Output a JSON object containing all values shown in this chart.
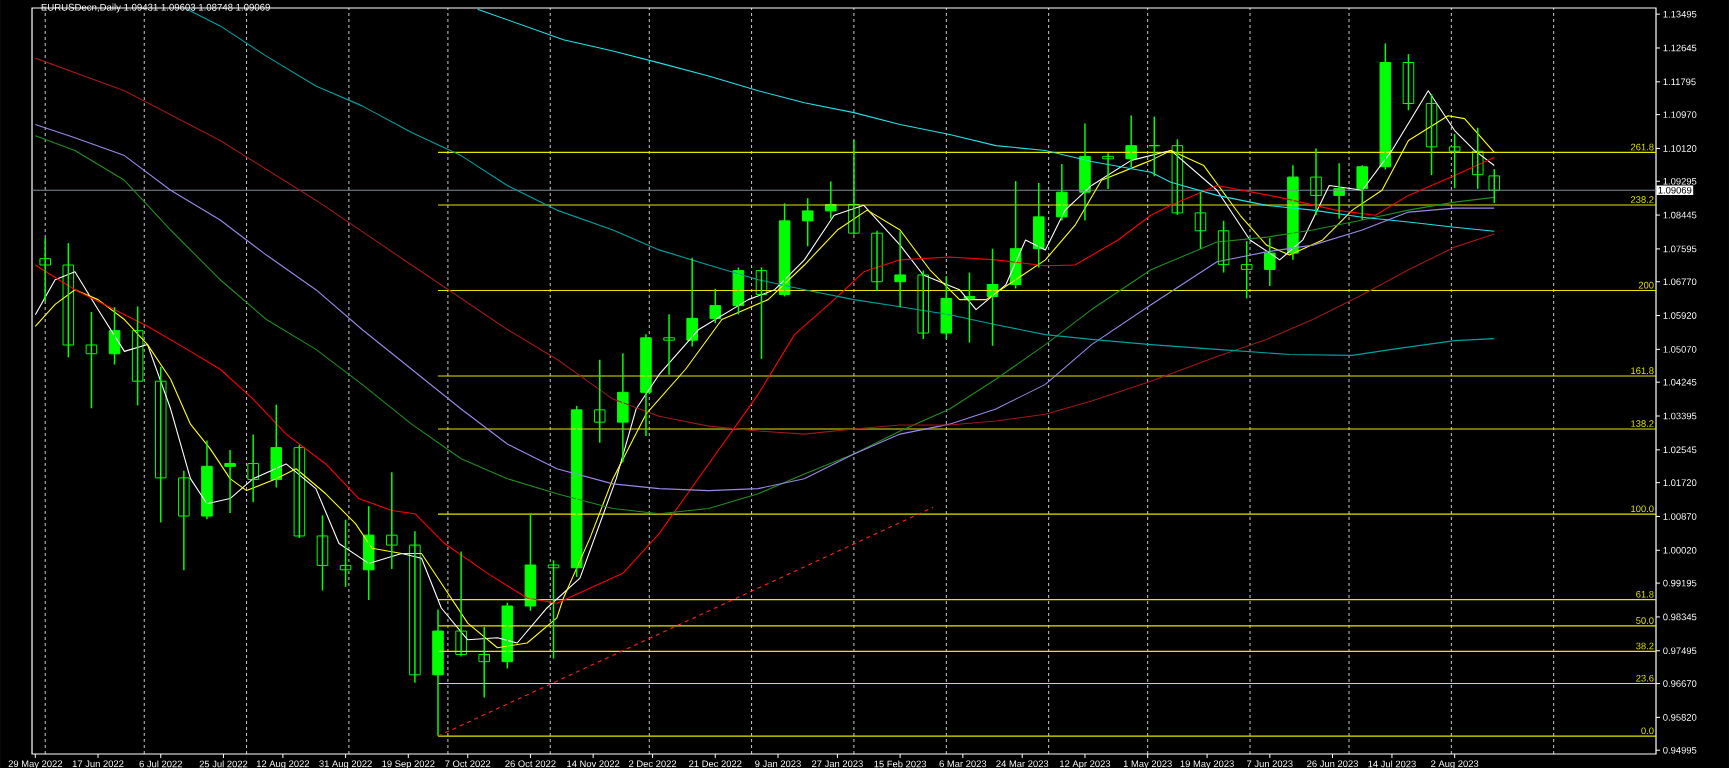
{
  "chart_data": {
    "type": "candlestick",
    "title": "EURUSDecn,Daily  1.09431 1.09603 1.08748 1.09069",
    "color": "#00ff00",
    "x": [
      "2022-06-01",
      "2022-06-08",
      "2022-06-15",
      "2022-06-22",
      "2022-06-29",
      "2022-07-06",
      "2022-07-13",
      "2022-07-20",
      "2022-07-27",
      "2022-08-03",
      "2022-08-10",
      "2022-08-17",
      "2022-08-24",
      "2022-08-31",
      "2022-09-07",
      "2022-09-14",
      "2022-09-21",
      "2022-09-28",
      "2022-10-05",
      "2022-10-12",
      "2022-10-19",
      "2022-10-26",
      "2022-11-02",
      "2022-11-09",
      "2022-11-16",
      "2022-11-23",
      "2022-11-30",
      "2022-12-07",
      "2022-12-14",
      "2022-12-21",
      "2022-12-28",
      "2023-01-04",
      "2023-01-11",
      "2023-01-18",
      "2023-01-25",
      "2023-02-01",
      "2023-02-08",
      "2023-02-15",
      "2023-02-22",
      "2023-03-01",
      "2023-03-08",
      "2023-03-15",
      "2023-03-22",
      "2023-03-29",
      "2023-04-05",
      "2023-04-12",
      "2023-04-19",
      "2023-04-26",
      "2023-05-03",
      "2023-05-10",
      "2023-05-17",
      "2023-05-24",
      "2023-05-31",
      "2023-06-07",
      "2023-06-14",
      "2023-06-21",
      "2023-06-28",
      "2023-07-05",
      "2023-07-12",
      "2023-07-19",
      "2023-07-26",
      "2023-08-02",
      "2023-08-09",
      "2023-08-14"
    ],
    "ohlc": [
      [
        1.0735,
        1.0787,
        1.0627,
        1.0719
      ],
      [
        1.0719,
        1.0774,
        1.0487,
        1.0518
      ],
      [
        1.0518,
        1.0601,
        1.0359,
        1.0496
      ],
      [
        1.0496,
        1.0613,
        1.0469,
        1.0554
      ],
      [
        1.0554,
        1.0615,
        1.0366,
        1.0427
      ],
      [
        1.0427,
        1.0463,
        1.0072,
        1.0184
      ],
      [
        1.0184,
        1.0202,
        0.9952,
        1.0088
      ],
      [
        1.0088,
        1.0278,
        1.008,
        1.0213
      ],
      [
        1.0213,
        1.0254,
        1.0096,
        1.022
      ],
      [
        1.022,
        1.0293,
        1.0123,
        1.018
      ],
      [
        1.018,
        1.0368,
        1.016,
        1.026
      ],
      [
        1.026,
        1.0267,
        1.0033,
        1.0038
      ],
      [
        1.0038,
        1.009,
        0.9901,
        0.9964
      ],
      [
        0.9964,
        1.0079,
        0.991,
        0.9953
      ],
      [
        0.9953,
        1.0113,
        0.9877,
        1.004
      ],
      [
        1.004,
        1.0198,
        0.9955,
        1.0015
      ],
      [
        1.0015,
        1.005,
        0.9669,
        0.9689
      ],
      [
        0.9689,
        0.9853,
        0.9536,
        0.9799
      ],
      [
        0.9799,
        0.9999,
        0.9735,
        0.974
      ],
      [
        0.974,
        0.9809,
        0.9632,
        0.9722
      ],
      [
        0.9722,
        0.987,
        0.9705,
        0.9862
      ],
      [
        0.9862,
        1.0094,
        0.985,
        0.9965
      ],
      [
        0.9965,
        0.9977,
        0.973,
        0.9958
      ],
      [
        0.9958,
        1.0365,
        0.9935,
        1.0355
      ],
      [
        1.0355,
        1.0481,
        1.0272,
        1.0324
      ],
      [
        1.0324,
        1.0497,
        1.0223,
        1.0399
      ],
      [
        1.0399,
        1.0545,
        1.0289,
        1.0536
      ],
      [
        1.0536,
        1.0595,
        1.0443,
        1.053
      ],
      [
        1.053,
        1.0737,
        1.0514,
        1.0585
      ],
      [
        1.0585,
        1.0659,
        1.0573,
        1.0617
      ],
      [
        1.0617,
        1.0713,
        1.0595,
        1.0705
      ],
      [
        1.0705,
        1.0713,
        1.0483,
        1.0645
      ],
      [
        1.0645,
        1.0874,
        1.064,
        1.083
      ],
      [
        1.083,
        1.0887,
        1.0766,
        1.0855
      ],
      [
        1.0855,
        1.0929,
        1.0835,
        1.0871
      ],
      [
        1.0871,
        1.1033,
        1.0796,
        1.0799
      ],
      [
        1.0799,
        1.0805,
        1.0655,
        1.0677
      ],
      [
        1.0677,
        1.0804,
        1.0613,
        1.0694
      ],
      [
        1.0694,
        1.0705,
        1.0533,
        1.0548
      ],
      [
        1.0548,
        1.0691,
        1.0533,
        1.0635
      ],
      [
        1.0635,
        1.07,
        1.0524,
        1.064
      ],
      [
        1.064,
        1.076,
        1.0516,
        1.067
      ],
      [
        1.067,
        1.093,
        1.066,
        1.076
      ],
      [
        1.076,
        1.0925,
        1.0713,
        1.084
      ],
      [
        1.084,
        1.0973,
        1.0831,
        1.0902
      ],
      [
        1.0902,
        1.1075,
        1.0831,
        1.0992
      ],
      [
        1.0992,
        1.1,
        1.091,
        1.0986
      ],
      [
        1.0986,
        1.1095,
        1.0964,
        1.1019
      ],
      [
        1.1019,
        1.1092,
        1.0942,
        1.1019
      ],
      [
        1.1019,
        1.1035,
        1.0845,
        1.085
      ],
      [
        1.085,
        1.0903,
        1.076,
        1.0805
      ],
      [
        1.0805,
        1.083,
        1.07,
        1.072
      ],
      [
        1.072,
        1.0779,
        1.0635,
        1.0708
      ],
      [
        1.0708,
        1.0787,
        1.0666,
        1.0749
      ],
      [
        1.0749,
        1.097,
        1.0732,
        1.094
      ],
      [
        1.094,
        1.1012,
        1.0845,
        1.0894
      ],
      [
        1.0894,
        1.0975,
        1.0835,
        1.0911
      ],
      [
        1.0911,
        1.097,
        1.0833,
        1.0966
      ],
      [
        1.0966,
        1.1276,
        1.0959,
        1.1228
      ],
      [
        1.1228,
        1.1249,
        1.1108,
        1.1125
      ],
      [
        1.1125,
        1.1149,
        1.0945,
        1.1016
      ],
      [
        1.1016,
        1.1048,
        1.0912,
        1.1005
      ],
      [
        1.1005,
        1.1064,
        1.0911,
        1.0946
      ],
      [
        1.0943,
        1.096,
        1.0875,
        1.0907
      ]
    ],
    "series": [
      {
        "type": "line",
        "color": "#ffffff",
        "x": [
          "2022-05-29",
          "2022-06-04",
          "2022-06-10",
          "2022-06-17",
          "2022-06-25",
          "2022-07-02",
          "2022-07-09",
          "2022-07-15",
          "2022-07-20",
          "2022-07-27",
          "2022-08-03",
          "2022-08-13",
          "2022-08-22",
          "2022-08-29",
          "2022-09-07",
          "2022-09-17",
          "2022-09-23",
          "2022-09-29",
          "2022-10-07",
          "2022-10-16",
          "2022-10-22",
          "2022-10-31",
          "2022-11-10",
          "2022-11-21",
          "2022-11-27",
          "2022-12-04",
          "2022-12-16",
          "2022-12-31",
          "2023-01-08",
          "2023-01-17",
          "2023-01-26",
          "2023-02-04",
          "2023-02-15",
          "2023-02-22",
          "2023-03-05",
          "2023-03-10",
          "2023-03-19",
          "2023-03-25",
          "2023-03-31",
          "2023-04-06",
          "2023-04-14",
          "2023-04-26",
          "2023-05-08",
          "2023-05-22",
          "2023-06-01",
          "2023-06-10",
          "2023-06-17",
          "2023-06-25",
          "2023-07-05",
          "2023-07-14",
          "2023-07-25",
          "2023-08-02",
          "2023-08-08",
          "2023-08-14"
        ],
        "values": [
          1.0594,
          1.0682,
          1.0702,
          1.0607,
          1.0502,
          1.0519,
          1.0357,
          1.0182,
          1.0119,
          1.0132,
          1.0182,
          1.0219,
          1.0157,
          1.0019,
          0.9969,
          0.9994,
          0.9982,
          0.9857,
          0.9777,
          0.9782,
          0.9769,
          0.9857,
          0.9932,
          1.0182,
          1.0357,
          1.0444,
          1.0557,
          1.0632,
          1.0657,
          1.0732,
          1.0844,
          1.0869,
          1.0769,
          1.0694,
          1.0657,
          1.0607,
          1.0669,
          1.0782,
          1.0757,
          1.0857,
          1.0919,
          1.0982,
          1.1007,
          1.0907,
          1.0782,
          1.0732,
          1.0782,
          1.0919,
          1.0907,
          1.1007,
          1.1157,
          1.1057,
          1.1007,
          1.0969
        ]
      },
      {
        "type": "line",
        "color": "#ffff00",
        "x": [
          "2022-05-29",
          "2022-06-04",
          "2022-06-10",
          "2022-06-17",
          "2022-06-25",
          "2022-07-02",
          "2022-07-09",
          "2022-07-15",
          "2022-07-21",
          "2022-07-27",
          "2022-08-01",
          "2022-08-10",
          "2022-08-16",
          "2022-08-25",
          "2022-09-03",
          "2022-09-08",
          "2022-09-17",
          "2022-09-23",
          "2022-09-29",
          "2022-10-07",
          "2022-10-16",
          "2022-10-25",
          "2022-11-03",
          "2022-11-05",
          "2022-11-13",
          "2022-11-20",
          "2022-11-30",
          "2022-12-12",
          "2022-12-23",
          "2023-01-06",
          "2023-01-17",
          "2023-01-27",
          "2023-02-05",
          "2023-02-15",
          "2023-02-24",
          "2023-03-05",
          "2023-03-13",
          "2023-03-22",
          "2023-03-31",
          "2023-04-09",
          "2023-04-17",
          "2023-05-02",
          "2023-05-08",
          "2023-05-18",
          "2023-05-29",
          "2023-06-06",
          "2023-06-13",
          "2023-06-23",
          "2023-07-02",
          "2023-07-11",
          "2023-07-19",
          "2023-07-31",
          "2023-08-05",
          "2023-08-14"
        ],
        "values": [
          1.0565,
          1.062,
          1.0657,
          1.0632,
          1.0582,
          1.0519,
          1.0432,
          1.0319,
          1.0257,
          1.0182,
          1.0152,
          1.0182,
          1.0207,
          1.0144,
          1.0069,
          1.0007,
          0.9994,
          0.9994,
          0.9919,
          0.9819,
          0.9757,
          0.9769,
          0.9832,
          0.9882,
          1.0032,
          1.0182,
          1.0344,
          1.0457,
          1.0582,
          1.0632,
          1.0719,
          1.0807,
          1.0857,
          1.0807,
          1.0707,
          1.0632,
          1.0632,
          1.0682,
          1.0732,
          1.0819,
          1.0932,
          1.0982,
          1.1007,
          1.0969,
          1.0844,
          1.0769,
          1.0744,
          1.0782,
          1.0857,
          1.0907,
          1.1032,
          1.1094,
          1.1087,
          1.1002
        ]
      },
      {
        "type": "line",
        "color": "#ff0000",
        "x": [
          "2022-05-29",
          "2022-06-10",
          "2022-07-02",
          "2022-07-14",
          "2022-07-24",
          "2022-08-03",
          "2022-08-13",
          "2022-08-25",
          "2022-09-04",
          "2022-09-14",
          "2022-09-21",
          "2022-09-30",
          "2022-10-13",
          "2022-10-25",
          "2022-11-03",
          "2022-11-23",
          "2022-12-04",
          "2022-12-19",
          "2023-01-03",
          "2023-01-14",
          "2023-01-26",
          "2023-02-04",
          "2023-02-15",
          "2023-03-02",
          "2023-03-16",
          "2023-03-31",
          "2023-04-09",
          "2023-04-22",
          "2023-05-02",
          "2023-05-08",
          "2023-05-22",
          "2023-06-10",
          "2023-06-27",
          "2023-07-09",
          "2023-07-19",
          "2023-08-02",
          "2023-08-14"
        ],
        "values": [
          1.0719,
          1.0657,
          1.0565,
          1.0507,
          1.0457,
          1.0382,
          1.0294,
          1.0219,
          1.0132,
          1.0102,
          1.0094,
          1.0019,
          0.9944,
          0.9882,
          0.9869,
          0.9944,
          1.0044,
          1.0219,
          1.0394,
          1.0544,
          1.0632,
          1.0702,
          1.0732,
          1.0739,
          1.0732,
          1.0717,
          1.0719,
          1.0782,
          1.0844,
          1.0869,
          1.0919,
          1.0889,
          1.0857,
          1.0844,
          1.0894,
          1.0944,
          1.0989
        ]
      },
      {
        "type": "line",
        "color": "#1f8f1f",
        "x": [
          "2022-05-29",
          "2022-06-10",
          "2022-06-25",
          "2022-07-09",
          "2022-07-24",
          "2022-08-07",
          "2022-08-22",
          "2022-09-05",
          "2022-09-20",
          "2022-10-05",
          "2022-10-19",
          "2022-11-03",
          "2022-11-20",
          "2022-12-04",
          "2022-12-19",
          "2023-01-03",
          "2023-01-17",
          "2023-02-01",
          "2023-02-15",
          "2023-03-02",
          "2023-03-16",
          "2023-03-31",
          "2023-04-14",
          "2023-05-02",
          "2023-05-22",
          "2023-06-06",
          "2023-06-20",
          "2023-07-05",
          "2023-07-19",
          "2023-08-02",
          "2023-08-14"
        ],
        "values": [
          1.1044,
          1.1007,
          1.0932,
          1.0807,
          1.0682,
          1.0582,
          1.0507,
          1.0419,
          1.0319,
          1.0232,
          1.0182,
          1.0144,
          1.0107,
          1.0094,
          1.0107,
          1.0144,
          1.0194,
          1.0244,
          1.0302,
          1.0357,
          1.0432,
          1.0519,
          1.0607,
          1.0707,
          1.0777,
          1.0789,
          1.0807,
          1.0832,
          1.0857,
          1.0877,
          1.0889
        ]
      },
      {
        "type": "line",
        "color": "#9b87e8",
        "x": [
          "2022-05-29",
          "2022-06-10",
          "2022-06-25",
          "2022-07-09",
          "2022-07-24",
          "2022-08-07",
          "2022-08-22",
          "2022-09-05",
          "2022-09-20",
          "2022-10-05",
          "2022-10-19",
          "2022-11-03",
          "2022-11-20",
          "2022-12-04",
          "2022-12-19",
          "2023-01-03",
          "2023-01-17",
          "2023-02-01",
          "2023-02-15",
          "2023-03-02",
          "2023-03-16",
          "2023-03-31",
          "2023-04-14",
          "2023-05-02",
          "2023-05-22",
          "2023-06-06",
          "2023-06-20",
          "2023-07-05",
          "2023-07-19",
          "2023-08-02",
          "2023-08-14"
        ],
        "values": [
          1.1072,
          1.1039,
          1.0994,
          1.0907,
          1.0832,
          1.0744,
          1.0657,
          1.0557,
          1.0457,
          1.0357,
          1.0269,
          1.0207,
          1.0169,
          1.0157,
          1.0152,
          1.0157,
          1.0182,
          1.0244,
          1.0294,
          1.0319,
          1.0357,
          1.0419,
          1.0519,
          1.0619,
          1.0727,
          1.0752,
          1.0769,
          1.0807,
          1.0852,
          1.0862,
          1.0862
        ]
      },
      {
        "type": "line",
        "color": "#a01818",
        "x": [
          "2022-05-29",
          "2022-06-25",
          "2022-07-24",
          "2022-08-22",
          "2022-09-20",
          "2022-10-19",
          "2022-11-03",
          "2022-11-20",
          "2022-12-04",
          "2022-12-19",
          "2023-01-03",
          "2023-01-17",
          "2023-02-01",
          "2023-02-15",
          "2023-03-02",
          "2023-03-16",
          "2023-03-31",
          "2023-04-14",
          "2023-05-02",
          "2023-05-22",
          "2023-06-06",
          "2023-06-20",
          "2023-07-05",
          "2023-07-19",
          "2023-08-02",
          "2023-08-14"
        ],
        "values": [
          1.1239,
          1.1157,
          1.1032,
          1.0882,
          1.0719,
          1.0557,
          1.0482,
          1.0382,
          1.0339,
          1.0314,
          1.0302,
          1.0294,
          1.0307,
          1.0317,
          1.0317,
          1.0327,
          1.0344,
          1.0377,
          1.0427,
          1.0489,
          1.0532,
          1.0582,
          1.0644,
          1.0707,
          1.0764,
          1.0797
        ]
      },
      {
        "type": "line",
        "color": "#00a0a0",
        "x": [
          "2022-07-14",
          "2022-07-24",
          "2022-08-07",
          "2022-08-22",
          "2022-09-05",
          "2022-09-20",
          "2022-10-05",
          "2022-10-19",
          "2022-11-03",
          "2022-11-20",
          "2022-12-04",
          "2022-12-19",
          "2023-01-03",
          "2023-01-17",
          "2023-02-01",
          "2023-02-15",
          "2023-03-02",
          "2023-03-16",
          "2023-03-31",
          "2023-04-14",
          "2023-05-02",
          "2023-05-22",
          "2023-06-13",
          "2023-07-02",
          "2023-07-14",
          "2023-08-02",
          "2023-08-14"
        ],
        "values": [
          1.1362,
          1.132,
          1.1244,
          1.1169,
          1.1119,
          1.1052,
          1.0994,
          1.0919,
          1.0857,
          1.0807,
          1.0757,
          1.0719,
          1.0682,
          1.0657,
          1.0632,
          1.0614,
          1.0594,
          1.0569,
          1.0544,
          1.0532,
          1.0519,
          1.0507,
          1.0494,
          1.0492,
          1.0507,
          1.0529,
          1.0534
        ]
      },
      {
        "type": "line",
        "color": "#20e0e8",
        "x": [
          "2022-10-10",
          "2022-11-05",
          "2022-11-20",
          "2022-12-04",
          "2022-12-19",
          "2023-01-03",
          "2023-01-17",
          "2023-02-01",
          "2023-02-15",
          "2023-03-02",
          "2023-03-16",
          "2023-03-31",
          "2023-04-14",
          "2023-05-02",
          "2023-05-08",
          "2023-05-22",
          "2023-06-06",
          "2023-06-20",
          "2023-07-05",
          "2023-07-19",
          "2023-08-02",
          "2023-08-14"
        ],
        "values": [
          1.1362,
          1.1285,
          1.1257,
          1.1227,
          1.1194,
          1.1157,
          1.1127,
          1.1102,
          1.1072,
          1.1047,
          1.1019,
          1.1007,
          1.0979,
          1.0952,
          1.0927,
          1.0894,
          1.0869,
          1.0857,
          1.0839,
          1.0827,
          1.0814,
          1.0804
        ]
      },
      {
        "type": "line",
        "color": "#ff2020",
        "line_style": "dashed",
        "x": [
          "2022-09-28",
          "2023-02-25"
        ],
        "values": [
          0.9535,
          1.011
        ]
      },
      {
        "type": "line",
        "name": "0.0",
        "color": "#e6e600",
        "x": [
          "2022-09-28",
          "2023-10-02"
        ],
        "values": [
          0.9535,
          0.9535
        ]
      },
      {
        "type": "line",
        "name": "23.6",
        "color": "#e6e600",
        "x": [
          "2022-09-28",
          "2023-10-02"
        ],
        "values": [
          0.9667,
          0.9667
        ]
      },
      {
        "type": "line",
        "name": "38.2",
        "color": "#e6e600",
        "x": [
          "2022-09-28",
          "2023-10-02"
        ],
        "values": [
          0.9748,
          0.9748
        ]
      },
      {
        "type": "line",
        "name": "50.0",
        "color": "#e6e600",
        "x": [
          "2022-09-28",
          "2023-10-02"
        ],
        "values": [
          0.9812,
          0.9812
        ]
      },
      {
        "type": "line",
        "name": "61.8",
        "color": "#e6e600",
        "x": [
          "2022-09-28",
          "2023-10-02"
        ],
        "values": [
          0.9878,
          0.9878
        ]
      },
      {
        "type": "line",
        "name": "100.0",
        "color": "#e6e600",
        "x": [
          "2022-09-28",
          "2023-10-02"
        ],
        "values": [
          1.0093,
          1.0093
        ]
      },
      {
        "type": "line",
        "name": "138.2",
        "color": "#e6e600",
        "x": [
          "2022-09-28",
          "2023-10-02"
        ],
        "values": [
          1.0307,
          1.0307
        ]
      },
      {
        "type": "line",
        "name": "161.8",
        "color": "#e6e600",
        "x": [
          "2022-09-28",
          "2023-10-02"
        ],
        "values": [
          1.044,
          1.044
        ]
      },
      {
        "type": "line",
        "name": "200",
        "color": "#e6e600",
        "x": [
          "2022-09-28",
          "2023-10-02"
        ],
        "values": [
          1.0655,
          1.0655
        ]
      },
      {
        "type": "line",
        "name": "238.2",
        "color": "#e6e600",
        "x": [
          "2022-09-28",
          "2023-10-02"
        ],
        "values": [
          1.087,
          1.087
        ]
      },
      {
        "type": "line",
        "name": "261.8",
        "color": "#e6e600",
        "x": [
          "2022-09-28",
          "2023-10-02"
        ],
        "values": [
          1.1002,
          1.1002
        ]
      }
    ],
    "ref_lines": [
      {
        "axis": "y",
        "value": 1.09069,
        "label": "1.09069",
        "color": "#7f8c99"
      }
    ],
    "xlim": [
      "2022-05-28",
      "2023-10-02"
    ],
    "xticks": [
      {
        "value": "2022-05-29",
        "label": "29 May 2022"
      },
      {
        "value": "2022-06-17",
        "label": "17 Jun 2022"
      },
      {
        "value": "2022-07-06",
        "label": "6 Jul 2022"
      },
      {
        "value": "2022-07-25",
        "label": "25 Jul 2022"
      },
      {
        "value": "2022-08-12",
        "label": "12 Aug 2022"
      },
      {
        "value": "2022-08-31",
        "label": "31 Aug 2022"
      },
      {
        "value": "2022-09-19",
        "label": "19 Sep 2022"
      },
      {
        "value": "2022-10-07",
        "label": "7 Oct 2022"
      },
      {
        "value": "2022-10-26",
        "label": "26 Oct 2022"
      },
      {
        "value": "2022-11-14",
        "label": "14 Nov 2022"
      },
      {
        "value": "2022-12-02",
        "label": "2 Dec 2022"
      },
      {
        "value": "2022-12-21",
        "label": "21 Dec 2022"
      },
      {
        "value": "2023-01-09",
        "label": "9 Jan 2023"
      },
      {
        "value": "2023-01-27",
        "label": "27 Jan 2023"
      },
      {
        "value": "2023-02-15",
        "label": "15 Feb 2023"
      },
      {
        "value": "2023-03-06",
        "label": "6 Mar 2023"
      },
      {
        "value": "2023-03-24",
        "label": "24 Mar 2023"
      },
      {
        "value": "2023-04-12",
        "label": "12 Apr 2023"
      },
      {
        "value": "2023-05-01",
        "label": "1 May 2023"
      },
      {
        "value": "2023-05-19",
        "label": "19 May 2023"
      },
      {
        "value": "2023-06-07",
        "label": "7 Jun 2023"
      },
      {
        "value": "2023-06-26",
        "label": "26 Jun 2023"
      },
      {
        "value": "2023-07-14",
        "label": "14 Jul 2023"
      },
      {
        "value": "2023-08-02",
        "label": "2 Aug 2023"
      },
      {
        "value": "2022-06-01",
        "label": null
      },
      {
        "value": "2022-07-01",
        "label": null
      },
      {
        "value": "2022-08-01",
        "label": null
      },
      {
        "value": "2022-09-01",
        "label": null
      },
      {
        "value": "2022-10-01",
        "label": null
      },
      {
        "value": "2022-11-01",
        "label": null
      },
      {
        "value": "2022-12-01",
        "label": null
      },
      {
        "value": "2023-01-01",
        "label": null
      },
      {
        "value": "2023-02-01",
        "label": null
      },
      {
        "value": "2023-03-01",
        "label": null
      },
      {
        "value": "2023-04-01",
        "label": null
      },
      {
        "value": "2023-05-01",
        "label": null
      },
      {
        "value": "2023-06-01",
        "label": null
      },
      {
        "value": "2023-07-01",
        "label": null
      },
      {
        "value": "2023-08-01",
        "label": null
      },
      {
        "value": "2023-09-01",
        "label": null
      }
    ],
    "ylim": [
      0.949,
      1.1365
    ],
    "yticks": [
      {
        "value": 1.13495,
        "label": "1.13495"
      },
      {
        "value": 1.12645,
        "label": "1.12645"
      },
      {
        "value": 1.11795,
        "label": "1.11795"
      },
      {
        "value": 1.1097,
        "label": "1.10970"
      },
      {
        "value": 1.1012,
        "label": "1.10120"
      },
      {
        "value": 1.09295,
        "label": "1.09295"
      },
      {
        "value": 1.08445,
        "label": "1.08445"
      },
      {
        "value": 1.07595,
        "label": "1.07595"
      },
      {
        "value": 1.0677,
        "label": "1.06770"
      },
      {
        "value": 1.0592,
        "label": "1.05920"
      },
      {
        "value": 1.0507,
        "label": "1.05070"
      },
      {
        "value": 1.04245,
        "label": "1.04245"
      },
      {
        "value": 1.03395,
        "label": "1.03395"
      },
      {
        "value": 1.02545,
        "label": "1.02545"
      },
      {
        "value": 1.0172,
        "label": "1.01720"
      },
      {
        "value": 1.0087,
        "label": "1.00870"
      },
      {
        "value": 1.0002,
        "label": "1.00020"
      },
      {
        "value": 0.99195,
        "label": "0.99195"
      },
      {
        "value": 0.98345,
        "label": "0.98345"
      },
      {
        "value": 0.97495,
        "label": "0.97495"
      },
      {
        "value": 0.9667,
        "label": "0.96670"
      },
      {
        "value": 0.9582,
        "label": "0.95820"
      },
      {
        "value": 0.94995,
        "label": "0.94995"
      }
    ],
    "grid": "x"
  }
}
